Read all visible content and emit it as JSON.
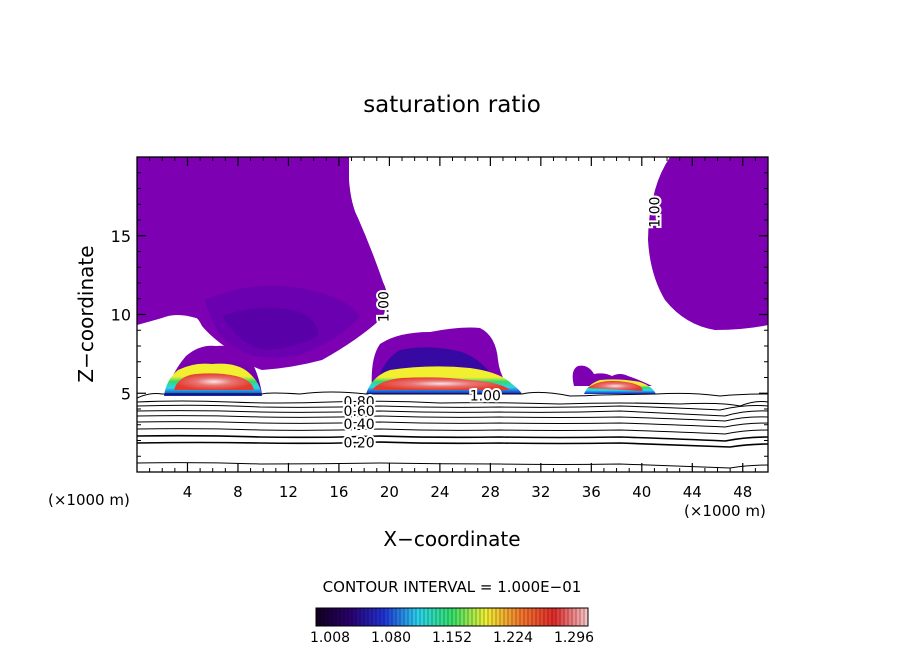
{
  "chart_data": {
    "type": "heatmap",
    "title": "saturation ratio",
    "xlabel": "X−coordinate",
    "ylabel": "Z−coordinate",
    "x_unit_left": "(×1000 m)",
    "x_unit_right": "(×1000 m)",
    "xlim": [
      0,
      50
    ],
    "ylim": [
      0,
      20
    ],
    "x_ticks": [
      4,
      8,
      12,
      16,
      20,
      24,
      28,
      32,
      36,
      40,
      44,
      48
    ],
    "y_ticks": [
      5,
      10,
      15
    ],
    "contour_interval_text": "CONTOUR INTERVAL = 1.000E−01",
    "colorbar": {
      "labels": [
        "1.008",
        "1.080",
        "1.152",
        "1.224",
        "1.296"
      ],
      "colors": [
        "#120020",
        "#2a006e",
        "#2033d6",
        "#2ad3ee",
        "#35e06a",
        "#f1f033",
        "#f37a2d",
        "#e12a2a",
        "#f7c9c9"
      ]
    },
    "contour_labels": [
      {
        "text": "1.00",
        "x": 19.6,
        "z": 10.5,
        "rotate": -90
      },
      {
        "text": "1.00",
        "x": 41.1,
        "z": 16.5,
        "rotate": -90
      },
      {
        "text": "1.00",
        "x": 27.6,
        "z": 4.8,
        "rotate": 0
      },
      {
        "text": "0.80",
        "x": 17.6,
        "z": 4.4,
        "rotate": 0
      },
      {
        "text": "0.60",
        "x": 17.6,
        "z": 3.8,
        "rotate": 0
      },
      {
        "text": "0.40",
        "x": 17.6,
        "z": 3.0,
        "rotate": 0
      },
      {
        "text": "0.20",
        "x": 17.6,
        "z": 1.8,
        "rotate": 0
      }
    ],
    "cloud_regions": [
      {
        "name": "cloud-left",
        "x_range": [
          2.2,
          9.8
        ],
        "z_range": [
          4.9,
          8.0
        ],
        "peak": 1.35
      },
      {
        "name": "cloud-center",
        "x_range": [
          18.0,
          30.5
        ],
        "z_range": [
          4.9,
          8.5
        ],
        "peak": 1.3
      },
      {
        "name": "cloud-right",
        "x_range": [
          35.0,
          40.8
        ],
        "z_range": [
          4.9,
          6.7
        ],
        "peak": 1.3
      }
    ]
  }
}
